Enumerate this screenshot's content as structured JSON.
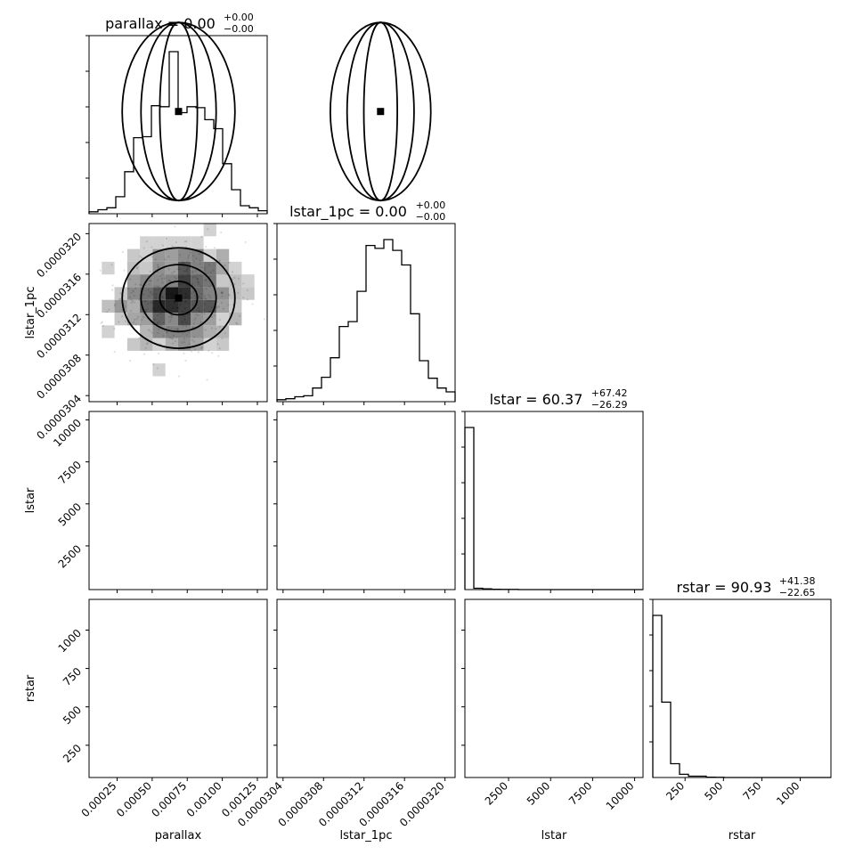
{
  "chart_data": {
    "type": "corner",
    "parameters": [
      "parallax",
      "lstar_1pc",
      "lstar",
      "rstar"
    ],
    "titles": [
      {
        "param": "parallax",
        "text": "parallax = 0.00",
        "up": "+0.00",
        "down": "−0.00"
      },
      {
        "param": "lstar_1pc",
        "text": "lstar_1pc = 0.00",
        "up": "+0.00",
        "down": "−0.00"
      },
      {
        "param": "lstar",
        "text": "lstar = 60.37",
        "up": "+67.42",
        "down": "−26.29"
      },
      {
        "param": "rstar",
        "text": "rstar = 90.93",
        "up": "+41.38",
        "down": "−22.65"
      }
    ],
    "axis_labels": {
      "x": [
        "parallax",
        "lstar_1pc",
        "lstar",
        "rstar"
      ],
      "y": [
        "lstar_1pc",
        "lstar",
        "rstar"
      ]
    },
    "ranges": {
      "parallax": [
        5e-05,
        0.00132
      ],
      "lstar_1pc": [
        3.034e-05,
        3.21e-05
      ],
      "lstar": [
        -100,
        10500
      ],
      "rstar": [
        40,
        1200
      ]
    },
    "ticks": {
      "parallax": {
        "values": [
          0.00025,
          0.0005,
          0.00075,
          0.001,
          0.00125
        ],
        "labels": [
          "0.00025",
          "0.00050",
          "0.00075",
          "0.00100",
          "0.00125"
        ]
      },
      "lstar_1pc": {
        "values": [
          3.04e-05,
          3.08e-05,
          3.12e-05,
          3.16e-05,
          3.2e-05
        ],
        "labels": [
          "0.0000304",
          "0.0000308",
          "0.0000312",
          "0.0000316",
          "0.0000320"
        ]
      },
      "lstar": {
        "values": [
          2500,
          5000,
          7500,
          10000
        ],
        "labels": [
          "2500",
          "5000",
          "7500",
          "10000"
        ]
      },
      "rstar": {
        "values": [
          250,
          500,
          750,
          1000
        ],
        "labels": [
          "250",
          "500",
          "750",
          "1000"
        ]
      }
    },
    "histograms": [
      {
        "param": "parallax",
        "edges_start": 5e-05,
        "bin_width": 6.35e-05,
        "counts": [
          2,
          4,
          6,
          17,
          42,
          76,
          77,
          108,
          107,
          162,
          101,
          107,
          106,
          94,
          85,
          50,
          24,
          8,
          6,
          3
        ]
      },
      {
        "param": "lstar_1pc",
        "edges_start": 3.034e-05,
        "bin_width": 8.8e-08,
        "counts": [
          2,
          3,
          5,
          6,
          14,
          25,
          45,
          77,
          82,
          113,
          160,
          157,
          166,
          155,
          140,
          90,
          42,
          24,
          14,
          10
        ]
      },
      {
        "param": "lstar",
        "edges_start": -100,
        "bin_width": 530,
        "counts": [
          1000,
          8,
          5,
          2,
          1,
          1,
          0,
          0,
          0,
          0,
          0,
          0,
          0,
          0,
          0,
          0,
          0,
          0,
          0,
          0
        ]
      },
      {
        "param": "rstar",
        "edges_start": 40,
        "bin_width": 58,
        "counts": [
          1000,
          465,
          85,
          20,
          8,
          8,
          2,
          1,
          0,
          0,
          0,
          0,
          0,
          0,
          0,
          0,
          0,
          0,
          0,
          0
        ]
      }
    ],
    "grid": false
  }
}
